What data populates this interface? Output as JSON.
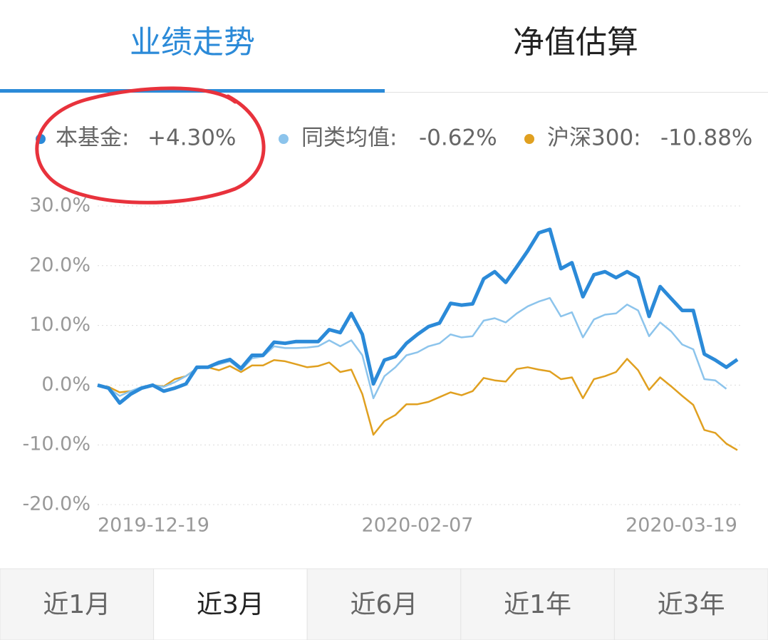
{
  "tabs": [
    "业绩走势",
    "净值估算"
  ],
  "range_tabs": [
    "近1月",
    "近3月",
    "近6月",
    "近1年",
    "近3年"
  ],
  "selected_range": 1,
  "chart_data": {
    "type": "line",
    "categories": [
      "2019-12-19",
      null,
      null,
      null,
      null,
      null,
      null,
      null,
      null,
      null,
      null,
      null,
      null,
      null,
      null,
      null,
      null,
      null,
      null,
      null,
      null,
      null,
      null,
      null,
      null,
      null,
      null,
      null,
      null,
      "2020-02-07",
      null,
      null,
      null,
      null,
      null,
      null,
      null,
      null,
      null,
      null,
      null,
      null,
      null,
      null,
      null,
      null,
      null,
      null,
      null,
      null,
      null,
      null,
      null,
      null,
      null,
      null,
      null,
      null,
      "2020-03-19"
    ],
    "ylim": [
      -20,
      30
    ],
    "yticks": [
      {
        "value": -20,
        "label": "-20.0%"
      },
      {
        "value": -10,
        "label": "-10.0%"
      },
      {
        "value": 0,
        "label": "0.0%"
      },
      {
        "value": 10,
        "label": "10.0%"
      },
      {
        "value": 20,
        "label": "20.0%"
      },
      {
        "value": 30,
        "label": "30.0%"
      }
    ],
    "grid": true,
    "series": [
      {
        "name": "本基金:",
        "color": "#2b8ad8",
        "return_label": "+4.30%",
        "return_color": "#d9652e",
        "width": 5,
        "values": [
          0,
          -0.5,
          -3.0,
          -1.5,
          -0.5,
          0,
          -1.0,
          -0.5,
          0.2,
          3.0,
          3.0,
          3.8,
          4.3,
          2.8,
          5.0,
          5.0,
          7.2,
          7.0,
          7.3,
          7.3,
          7.3,
          9.3,
          8.8,
          12.0,
          8.5,
          0.2,
          4.2,
          4.8,
          7.0,
          8.5,
          9.8,
          10.4,
          13.7,
          13.4,
          13.6,
          17.8,
          19.0,
          17.2,
          19.8,
          22.5,
          25.5,
          26.1,
          19.5,
          20.5,
          14.8,
          18.5,
          19.0,
          18.0,
          19.0,
          18.0,
          11.5,
          16.5,
          14.5,
          12.5,
          12.5,
          5.2,
          4.2,
          3.0,
          4.3
        ]
      },
      {
        "name": "同类均值:",
        "color": "#8cc4ec",
        "return_label": "-0.62%",
        "return_color": "#2aa38a",
        "width": 2.5,
        "values": [
          0,
          -0.5,
          -1.8,
          -1.0,
          -0.3,
          0,
          -0.3,
          0.5,
          1.5,
          2.8,
          3.0,
          3.5,
          4.0,
          2.5,
          4.5,
          4.8,
          6.5,
          6.2,
          6.2,
          6.3,
          6.5,
          7.5,
          6.5,
          7.5,
          5.0,
          -2.2,
          1.5,
          3.0,
          5.0,
          5.5,
          6.5,
          7.0,
          8.5,
          8.0,
          8.2,
          10.8,
          11.2,
          10.5,
          12.0,
          13.2,
          14.0,
          14.6,
          11.5,
          12.2,
          8.0,
          11.0,
          11.8,
          12.0,
          13.5,
          12.5,
          8.2,
          10.5,
          9.0,
          6.8,
          6.0,
          1.0,
          0.8,
          -0.62,
          null
        ]
      },
      {
        "name": "沪深300:",
        "color": "#e0a020",
        "return_label": "-10.88%",
        "return_color": "#2aa38a",
        "width": 2.5,
        "values": [
          0,
          -0.3,
          -1.2,
          -1.0,
          -0.6,
          0,
          -0.2,
          1.0,
          1.5,
          2.8,
          3.0,
          2.5,
          3.2,
          2.2,
          3.3,
          3.3,
          4.2,
          4.0,
          3.5,
          3.0,
          3.2,
          3.8,
          2.2,
          2.6,
          -1.5,
          -8.3,
          -6.0,
          -5.0,
          -3.2,
          -3.2,
          -2.8,
          -2.0,
          -1.2,
          -1.7,
          -1.0,
          1.2,
          0.8,
          0.6,
          2.7,
          3.0,
          2.6,
          2.3,
          1.0,
          1.3,
          -2.2,
          1.0,
          1.5,
          2.2,
          4.4,
          2.5,
          -0.8,
          1.3,
          -0.2,
          -1.8,
          -3.3,
          -7.5,
          -8.0,
          -9.8,
          -10.88
        ]
      }
    ]
  }
}
